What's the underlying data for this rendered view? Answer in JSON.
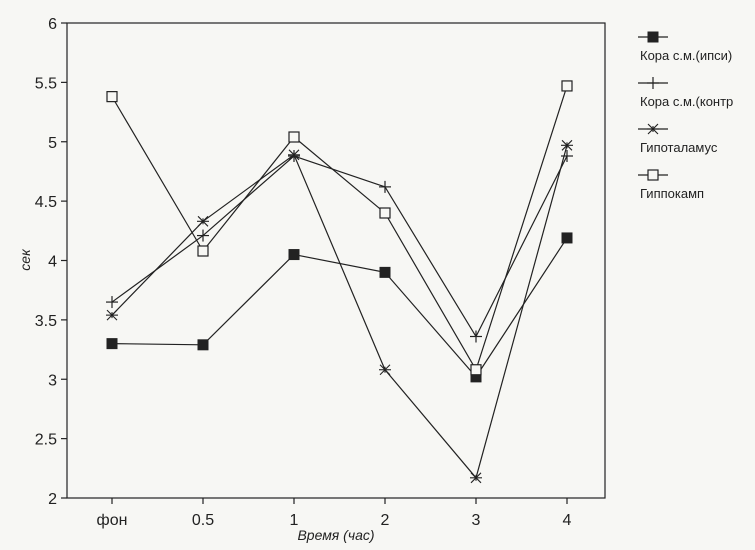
{
  "chart_data": {
    "type": "line",
    "categories": [
      "фон",
      "0.5",
      "1",
      "2",
      "3",
      "4"
    ],
    "xlabel": "Время (час)",
    "ylabel": "сек",
    "ylim": [
      2,
      6
    ],
    "yticks": [
      "2",
      "2.5",
      "3",
      "3.5",
      "4",
      "4.5",
      "5",
      "5.5",
      "6"
    ],
    "grid": false,
    "legend_position": "right",
    "series": [
      {
        "name": "Кора с.м.(ипси)",
        "marker": "filled-square",
        "values": [
          3.3,
          3.29,
          4.05,
          3.9,
          3.02,
          4.19
        ]
      },
      {
        "name": "Кора с.м.(контр",
        "marker": "plus",
        "values": [
          3.65,
          4.21,
          4.88,
          4.62,
          3.36,
          4.88
        ]
      },
      {
        "name": "Гипоталамус",
        "marker": "star",
        "values": [
          3.54,
          4.33,
          4.89,
          3.08,
          2.17,
          4.97
        ]
      },
      {
        "name": "Гиппокамп",
        "marker": "open-square",
        "values": [
          5.38,
          4.08,
          5.04,
          4.4,
          3.08,
          5.47
        ]
      }
    ]
  }
}
